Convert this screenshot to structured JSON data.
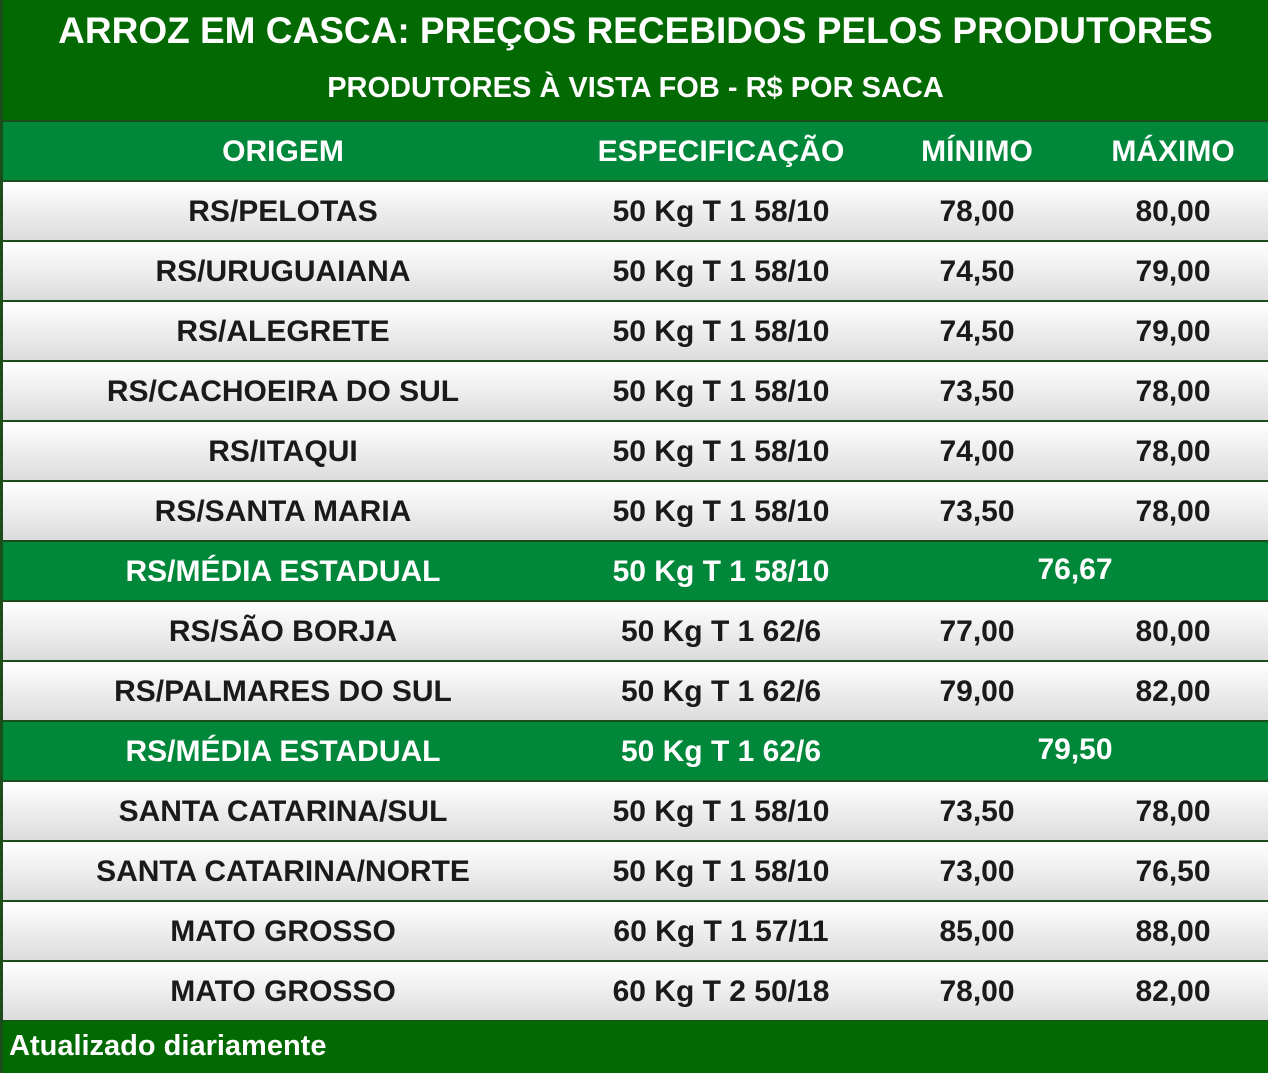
{
  "header": {
    "title": "ARROZ EM CASCA: PREÇOS RECEBIDOS PELOS PRODUTORES",
    "subtitle": "PRODUTORES À VISTA FOB - R$ POR SACA"
  },
  "table": {
    "columns": [
      "ORIGEM",
      "ESPECIFICAÇÃO",
      "MÍNIMO",
      "MÁXIMO"
    ],
    "rows": [
      [
        "RS/PELOTAS",
        "50 Kg T 1 58/10",
        "78,00",
        "80,00"
      ],
      [
        "RS/URUGUAIANA",
        "50 Kg T 1 58/10",
        "74,50",
        "79,00"
      ],
      [
        "RS/ALEGRETE",
        "50 Kg T 1 58/10",
        "74,50",
        "79,00"
      ],
      [
        "RS/CACHOEIRA DO SUL",
        "50 Kg T 1 58/10",
        "73,50",
        "78,00"
      ],
      [
        "RS/ITAQUI",
        "50 Kg T 1 58/10",
        "74,00",
        "78,00"
      ],
      [
        "RS/SANTA MARIA",
        "50 Kg T 1 58/10",
        "73,50",
        "78,00"
      ],
      [
        "RS/MÉDIA ESTADUAL",
        "50 Kg T 1 58/10",
        "76,67"
      ],
      [
        "RS/SÃO BORJA",
        "50 Kg T 1 62/6",
        "77,00",
        "80,00"
      ],
      [
        "RS/PALMARES DO SUL",
        "50 Kg T 1 62/6",
        "79,00",
        "82,00"
      ],
      [
        "RS/MÉDIA ESTADUAL",
        "50 Kg T 1 62/6",
        "79,50"
      ],
      [
        "SANTA CATARINA/SUL",
        "50 Kg T 1 58/10",
        "73,50",
        "78,00"
      ],
      [
        "SANTA CATARINA/NORTE",
        "50 Kg T 1 58/10",
        "73,00",
        "76,50"
      ],
      [
        "MATO GROSSO",
        "60 Kg T 1 57/11",
        "85,00",
        "88,00"
      ],
      [
        "MATO GROSSO",
        "60 Kg T 2 50/18",
        "78,00",
        "82,00"
      ]
    ]
  },
  "footer": {
    "note": "Atualizado diariamente"
  }
}
